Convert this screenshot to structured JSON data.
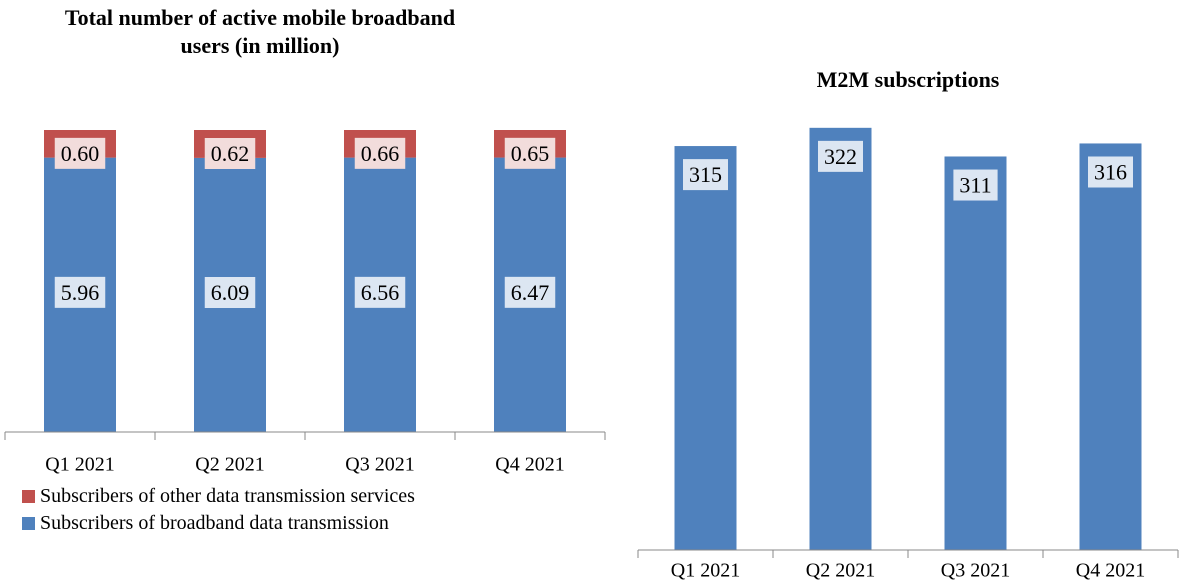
{
  "chart_data": [
    {
      "type": "bar",
      "stacking": "percent",
      "title": "Total number of active mobile broadband users (in million)",
      "categories": [
        "Q1 2021",
        "Q2 2021",
        "Q3 2021",
        "Q4 2021"
      ],
      "series": [
        {
          "name": "Subscribers of broadband data transmission",
          "color": "#4f81bd",
          "label_fill": "#dce6f2",
          "values": [
            5.96,
            6.09,
            6.56,
            6.47
          ],
          "value_labels": [
            "5.96",
            "6.09",
            "6.56",
            "6.47"
          ]
        },
        {
          "name": "Subscribers of other data transmission services",
          "color": "#c0504d",
          "label_fill": "#f2dcdb",
          "values": [
            0.6,
            0.62,
            0.66,
            0.65
          ],
          "value_labels": [
            "0.60",
            "0.62",
            "0.66",
            "0.65"
          ]
        }
      ]
    },
    {
      "type": "bar",
      "title": "M2M subscriptions",
      "categories": [
        "Q1 2021",
        "Q2 2021",
        "Q3 2021",
        "Q4 2021"
      ],
      "values": [
        315,
        322,
        311,
        316
      ],
      "color": "#4f81bd",
      "label_fill": "#dce6f2",
      "ylim": [
        160,
        325
      ]
    }
  ]
}
